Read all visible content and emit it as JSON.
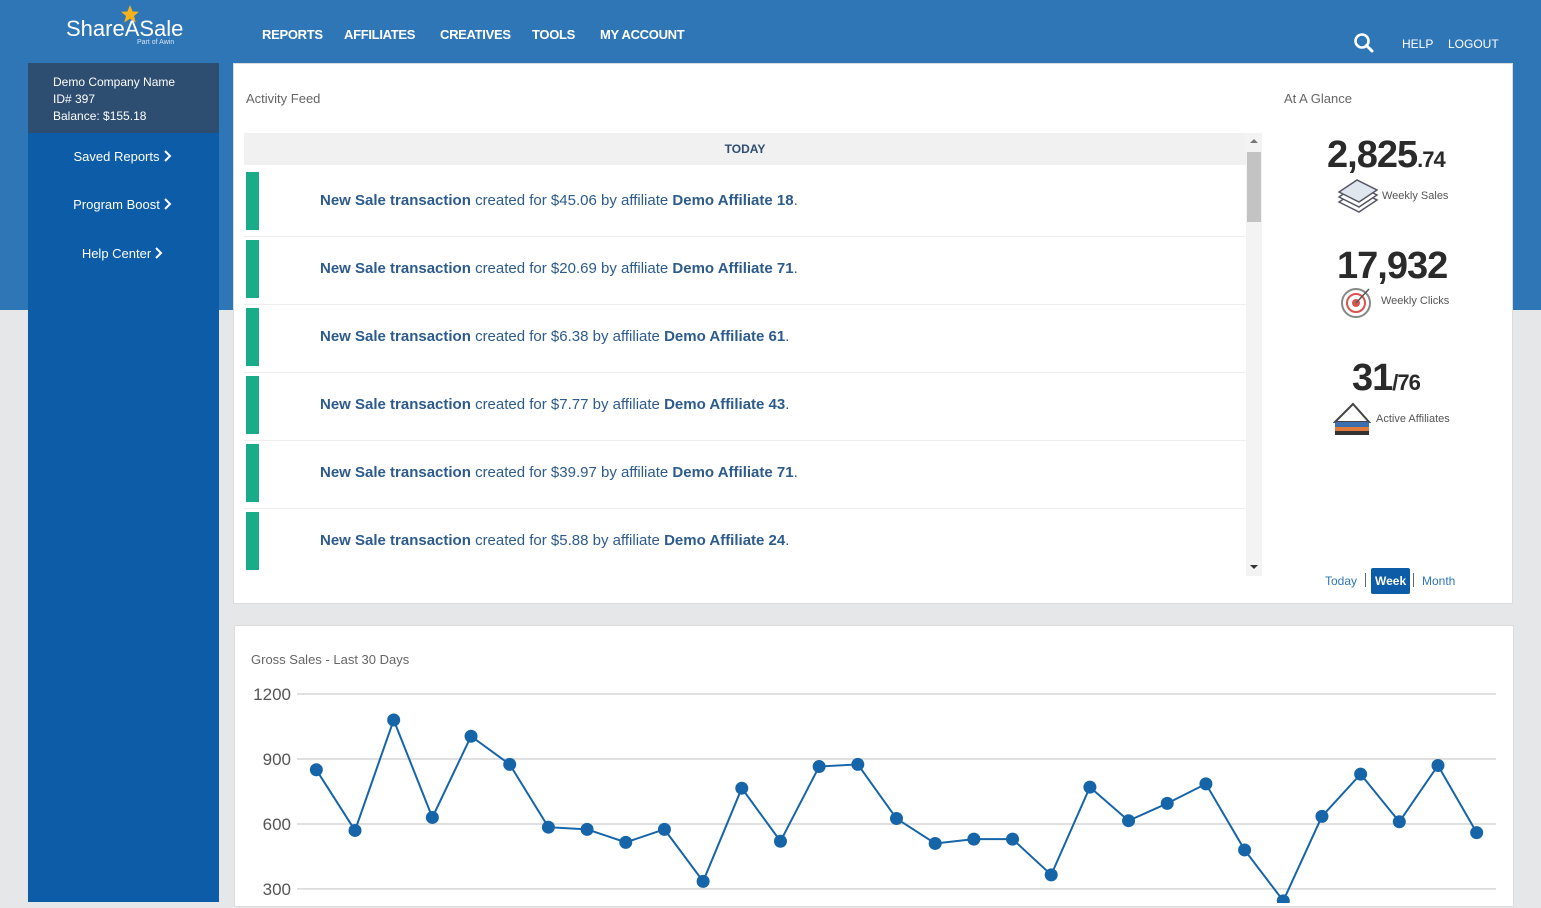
{
  "nav": {
    "logo": "ShareASale",
    "logo_sub": "Part of Awin",
    "items": [
      "REPORTS",
      "AFFILIATES",
      "CREATIVES",
      "TOOLS",
      "MY ACCOUNT"
    ],
    "right": [
      "HELP",
      "LOGOUT"
    ]
  },
  "account": {
    "name": "Demo Company Name",
    "id": "ID# 397",
    "balance": "Balance: $155.18"
  },
  "sidebar": [
    "Saved Reports",
    "Program Boost",
    "Help Center"
  ],
  "activity_feed": {
    "title": "Activity Feed",
    "header": "TODAY",
    "rows": [
      {
        "action": "New Sale transaction",
        "detail": "created for $45.06 by affiliate",
        "affiliate": "Demo Affiliate 18",
        "end": "."
      },
      {
        "action": "New Sale transaction",
        "detail": "created for $20.69 by affiliate",
        "affiliate": "Demo Affiliate 71",
        "end": "."
      },
      {
        "action": "New Sale transaction",
        "detail": "created for $6.38 by affiliate",
        "affiliate": "Demo Affiliate 61",
        "end": "."
      },
      {
        "action": "New Sale transaction",
        "detail": "created for $7.77 by affiliate",
        "affiliate": "Demo Affiliate 43",
        "end": "."
      },
      {
        "action": "New Sale transaction",
        "detail": "created for $39.97 by affiliate",
        "affiliate": "Demo Affiliate 71",
        "end": "."
      },
      {
        "action": "New Sale transaction",
        "detail": "created for $5.88 by affiliate",
        "affiliate": "Demo Affiliate 24",
        "end": "."
      }
    ]
  },
  "at_a_glance": {
    "title": "At A Glance",
    "weekly_sales": {
      "main": "2,825",
      "fraction": ".74",
      "label": "Weekly Sales"
    },
    "weekly_clicks": {
      "main": "17,932",
      "label": "Weekly Clicks"
    },
    "active_affiliates": {
      "main": "31",
      "fraction": "/76",
      "label": "Active Affiliates"
    },
    "periods": [
      "Today",
      "Week",
      "Month"
    ]
  },
  "chart_data": {
    "type": "line",
    "title": "Gross Sales - Last 30 Days",
    "categories": [
      null,
      null,
      null,
      null,
      null,
      null,
      null,
      null,
      null,
      null,
      null,
      null,
      null,
      null,
      null,
      null,
      null,
      null,
      null,
      null,
      null,
      null,
      null,
      null,
      null,
      null,
      null,
      null,
      null,
      null,
      null
    ],
    "values": [
      850,
      570,
      1080,
      630,
      1005,
      875,
      585,
      575,
      515,
      575,
      335,
      765,
      520,
      865,
      875,
      625,
      510,
      530,
      530,
      365,
      770,
      615,
      695,
      785,
      480,
      245,
      635,
      830,
      610,
      870,
      560
    ],
    "color": "#1565a8",
    "ylim": [
      235,
      1200
    ],
    "yticks": [
      300,
      600,
      900,
      1200
    ],
    "grid": true
  }
}
